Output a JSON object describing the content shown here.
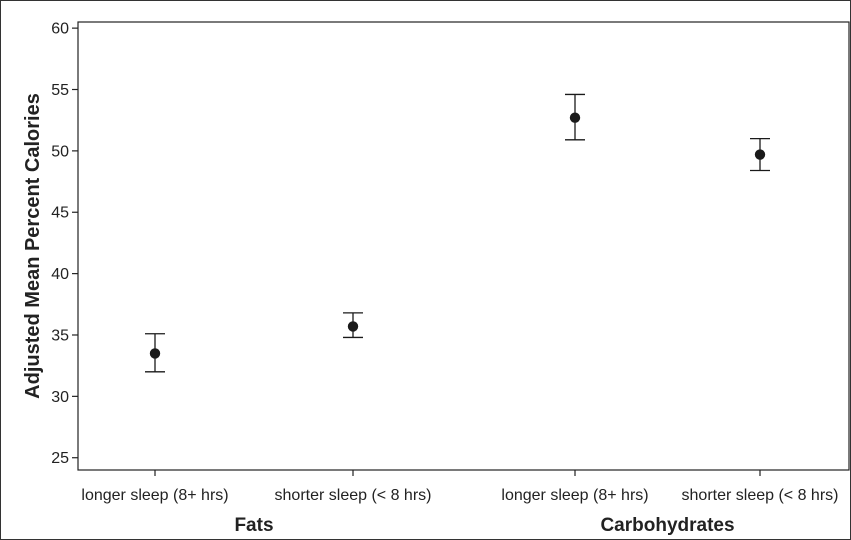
{
  "chart_data": {
    "type": "scatter",
    "title": "",
    "xlabel": "",
    "ylabel": "Adjusted Mean Percent Calories",
    "ylim": [
      24,
      60.5
    ],
    "yticks": [
      25,
      30,
      35,
      40,
      45,
      50,
      55,
      60
    ],
    "grid": false,
    "groups": [
      "Fats",
      "Carbohydrates"
    ],
    "categories": [
      "longer sleep (8+ hrs)",
      "shorter sleep (< 8 hrs)",
      "longer sleep (8+ hrs)",
      "shorter sleep (< 8 hrs)"
    ],
    "category_groups": [
      0,
      0,
      1,
      1
    ],
    "values": [
      33.5,
      35.7,
      52.7,
      49.7
    ],
    "error_low": [
      32.0,
      34.8,
      50.9,
      48.4
    ],
    "error_high": [
      35.1,
      36.8,
      54.6,
      51.0
    ],
    "marker_color": "#1a1a1a"
  }
}
